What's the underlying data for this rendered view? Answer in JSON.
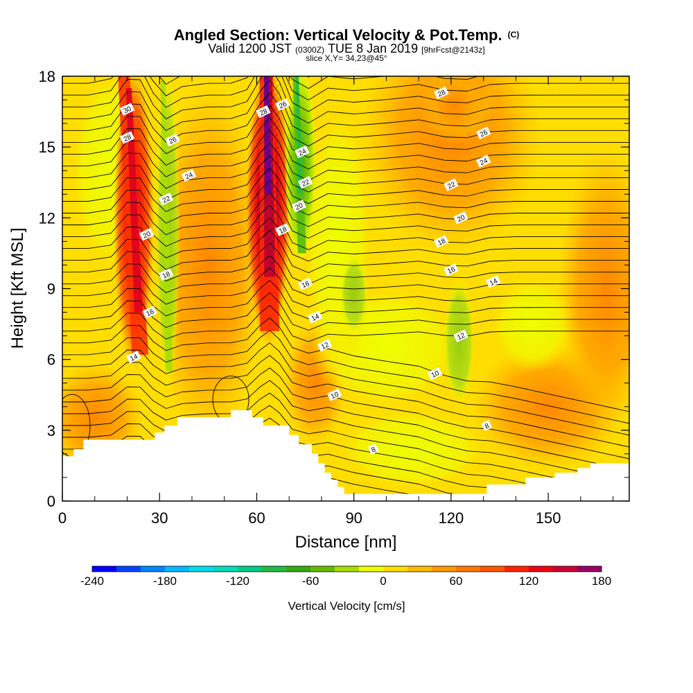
{
  "title": "Angled Section: Vertical Velocity & Pot.Temp.",
  "title_unit": "(C)",
  "subtitle": {
    "valid_prefix": "Valid 1200 JST",
    "utc": "(0300Z)",
    "date": "TUE 8 Jan 2019",
    "forecast": "[9hrFcst@2143z]"
  },
  "slice_text": "slice X,Y= 34,23@45°",
  "chart_data": {
    "type": "heatmap",
    "xlabel": "Distance [nm]",
    "ylabel": "Height [Kft MSL]",
    "xlim": [
      0,
      175
    ],
    "ylim": [
      0,
      18
    ],
    "x_ticks": [
      0,
      30,
      60,
      90,
      120,
      150
    ],
    "y_ticks": [
      0,
      3,
      6,
      9,
      12,
      15,
      18
    ],
    "colorbar": {
      "label": "Vertical Velocity [cm/s]",
      "min": -240,
      "max": 180,
      "step": 20,
      "tick_values": [
        -240,
        -180,
        -120,
        -60,
        0,
        60,
        120,
        180
      ],
      "tick_labels": [
        "-240",
        "-180",
        "-120",
        "-60",
        "0",
        "60",
        "120",
        "180"
      ],
      "colors": [
        "#0000ff",
        "#0044ff",
        "#0088ff",
        "#00bbff",
        "#00ddee",
        "#00ddbb",
        "#00cc88",
        "#22bb44",
        "#33aa11",
        "#66bb00",
        "#aadd00",
        "#eeff00",
        "#ffdd00",
        "#ffbb00",
        "#ff9900",
        "#ff7700",
        "#ff5500",
        "#ff2200",
        "#ee0011",
        "#cc0033",
        "#990066",
        "#660099"
      ]
    },
    "vertical_velocity_features": [
      {
        "kind": "updraft",
        "x": [
          17,
          27
        ],
        "y": [
          6,
          18
        ],
        "peak_cm_s": 130
      },
      {
        "kind": "downdraft",
        "x": [
          30,
          35
        ],
        "y": [
          5,
          18
        ],
        "peak_cm_s": -60
      },
      {
        "kind": "updraft",
        "x": [
          58,
          69
        ],
        "y": [
          7,
          18
        ],
        "peak_cm_s": 180
      },
      {
        "kind": "downdraft",
        "x": [
          70,
          77
        ],
        "y": [
          10.5,
          18
        ],
        "peak_cm_s": -80
      },
      {
        "kind": "downdraft",
        "x": [
          87,
          93
        ],
        "y": [
          7.5,
          10
        ],
        "peak_cm_s": -50
      },
      {
        "kind": "downdraft",
        "x": [
          119,
          126
        ],
        "y": [
          4.5,
          9
        ],
        "peak_cm_s": -50
      },
      {
        "kind": "updraft",
        "x": [
          112,
          130
        ],
        "y": [
          15.5,
          18
        ],
        "peak_cm_s": 50
      }
    ],
    "potential_temperature_labels_C": [
      {
        "value": "30",
        "x": 20,
        "y": 16.6
      },
      {
        "value": "28",
        "x": 20,
        "y": 15.4
      },
      {
        "value": "26",
        "x": 34,
        "y": 15.3
      },
      {
        "value": "24",
        "x": 39,
        "y": 13.8
      },
      {
        "value": "22",
        "x": 32,
        "y": 12.8
      },
      {
        "value": "20",
        "x": 26,
        "y": 11.3
      },
      {
        "value": "18",
        "x": 32,
        "y": 9.6
      },
      {
        "value": "16",
        "x": 27,
        "y": 8.0
      },
      {
        "value": "14",
        "x": 22,
        "y": 6.1
      },
      {
        "value": "28",
        "x": 62,
        "y": 16.5
      },
      {
        "value": "26",
        "x": 68,
        "y": 16.8
      },
      {
        "value": "24",
        "x": 74,
        "y": 14.8
      },
      {
        "value": "22",
        "x": 75,
        "y": 13.5
      },
      {
        "value": "20",
        "x": 73,
        "y": 12.5
      },
      {
        "value": "18",
        "x": 68,
        "y": 11.5
      },
      {
        "value": "16",
        "x": 75,
        "y": 9.2
      },
      {
        "value": "14",
        "x": 78,
        "y": 7.8
      },
      {
        "value": "12",
        "x": 81,
        "y": 6.6
      },
      {
        "value": "10",
        "x": 84,
        "y": 4.5
      },
      {
        "value": "8",
        "x": 96,
        "y": 2.2
      },
      {
        "value": "28",
        "x": 117,
        "y": 17.3
      },
      {
        "value": "26",
        "x": 130,
        "y": 15.6
      },
      {
        "value": "24",
        "x": 130,
        "y": 14.4
      },
      {
        "value": "22",
        "x": 120,
        "y": 13.4
      },
      {
        "value": "20",
        "x": 123,
        "y": 12.0
      },
      {
        "value": "18",
        "x": 117,
        "y": 11.0
      },
      {
        "value": "16",
        "x": 120,
        "y": 9.8
      },
      {
        "value": "14",
        "x": 133,
        "y": 9.3
      },
      {
        "value": "12",
        "x": 123,
        "y": 7.0
      },
      {
        "value": "10",
        "x": 115,
        "y": 5.4
      },
      {
        "value": "8",
        "x": 131,
        "y": 3.2
      }
    ],
    "terrain_top_kft": [
      {
        "x": 0,
        "h": 1.9
      },
      {
        "x": 3.5,
        "h": 2.2
      },
      {
        "x": 6.5,
        "h": 2.6
      },
      {
        "x": 28.5,
        "h": 2.9
      },
      {
        "x": 31.5,
        "h": 3.2
      },
      {
        "x": 35.5,
        "h": 3.55
      },
      {
        "x": 52,
        "h": 3.85
      },
      {
        "x": 58.5,
        "h": 3.55
      },
      {
        "x": 62,
        "h": 3.2
      },
      {
        "x": 70,
        "h": 2.8
      },
      {
        "x": 73,
        "h": 2.4
      },
      {
        "x": 77,
        "h": 2.0
      },
      {
        "x": 79,
        "h": 1.6
      },
      {
        "x": 81,
        "h": 1.2
      },
      {
        "x": 83,
        "h": 0.9
      },
      {
        "x": 85,
        "h": 0.6
      },
      {
        "x": 87,
        "h": 0.3
      },
      {
        "x": 128,
        "h": 0.3
      },
      {
        "x": 131,
        "h": 0.7
      },
      {
        "x": 143,
        "h": 1.0
      },
      {
        "x": 152,
        "h": 1.2
      },
      {
        "x": 159,
        "h": 1.4
      },
      {
        "x": 163,
        "h": 1.6
      },
      {
        "x": 175,
        "h": 1.6
      }
    ]
  }
}
